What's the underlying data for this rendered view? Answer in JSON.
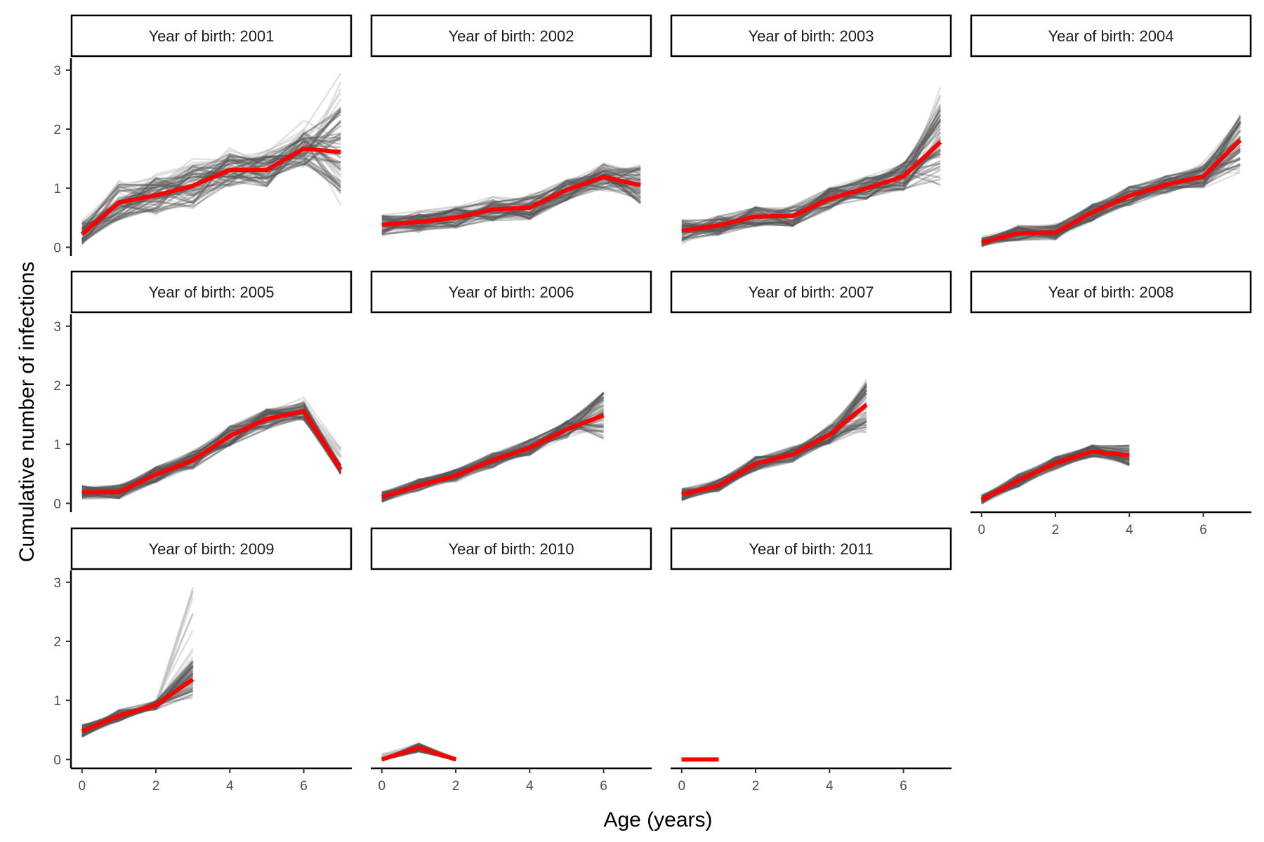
{
  "chart_data": {
    "type": "line",
    "xlabel": "Age (years)",
    "ylabel": "Cumulative number of infections",
    "xlim": [
      -0.3,
      7.3
    ],
    "ylim": [
      -0.15,
      3.2
    ],
    "x_ticks": [
      0,
      2,
      4,
      6
    ],
    "y_ticks": [
      0,
      1,
      2,
      3
    ],
    "facet_prefix": "Year of birth: ",
    "colors": {
      "mean_line": "#ff0000",
      "sample_lines": "#555555",
      "sample_lines_light": "#bdbdbd"
    },
    "facets": [
      {
        "cohort": "2001",
        "mean": [
          [
            0,
            0.22
          ],
          [
            1,
            0.76
          ],
          [
            2,
            0.88
          ],
          [
            3,
            1.04
          ],
          [
            4,
            1.31
          ],
          [
            5,
            1.31
          ],
          [
            6,
            1.67
          ],
          [
            7,
            1.61
          ]
        ],
        "band_low": [
          0.02,
          0.42,
          0.55,
          0.65,
          1.0,
          1.0,
          1.35,
          0.7
        ],
        "band_high": [
          0.62,
          1.15,
          1.3,
          1.5,
          1.7,
          1.75,
          2.15,
          2.95
        ]
      },
      {
        "cohort": "2002",
        "mean": [
          [
            0,
            0.38
          ],
          [
            1,
            0.43
          ],
          [
            2,
            0.5
          ],
          [
            3,
            0.64
          ],
          [
            4,
            0.67
          ],
          [
            5,
            0.97
          ],
          [
            6,
            1.19
          ],
          [
            7,
            1.05
          ]
        ],
        "band_low": [
          0.18,
          0.25,
          0.32,
          0.44,
          0.46,
          0.78,
          0.95,
          0.7
        ],
        "band_high": [
          0.55,
          0.62,
          0.72,
          0.86,
          0.9,
          1.18,
          1.45,
          1.48
        ]
      },
      {
        "cohort": "2003",
        "mean": [
          [
            0,
            0.28
          ],
          [
            1,
            0.37
          ],
          [
            2,
            0.52
          ],
          [
            3,
            0.53
          ],
          [
            4,
            0.82
          ],
          [
            5,
            1.0
          ],
          [
            6,
            1.2
          ],
          [
            7,
            1.78
          ]
        ],
        "band_low": [
          0.05,
          0.2,
          0.35,
          0.35,
          0.62,
          0.8,
          0.95,
          0.95
        ],
        "band_high": [
          0.48,
          0.55,
          0.7,
          0.72,
          1.02,
          1.22,
          1.45,
          2.85
        ]
      },
      {
        "cohort": "2004",
        "mean": [
          [
            0,
            0.08
          ],
          [
            1,
            0.24
          ],
          [
            2,
            0.25
          ],
          [
            3,
            0.59
          ],
          [
            4,
            0.87
          ],
          [
            5,
            1.06
          ],
          [
            6,
            1.2
          ],
          [
            7,
            1.81
          ]
        ],
        "band_low": [
          0.02,
          0.12,
          0.13,
          0.45,
          0.7,
          0.9,
          1.0,
          1.25
        ],
        "band_high": [
          0.18,
          0.38,
          0.4,
          0.75,
          1.05,
          1.25,
          1.45,
          2.3
        ]
      },
      {
        "cohort": "2005",
        "mean": [
          [
            0,
            0.19
          ],
          [
            1,
            0.19
          ],
          [
            2,
            0.49
          ],
          [
            3,
            0.73
          ],
          [
            4,
            1.14
          ],
          [
            5,
            1.43
          ],
          [
            6,
            1.56
          ],
          [
            7,
            0.57
          ]
        ],
        "band_low": [
          0.08,
          0.08,
          0.35,
          0.58,
          0.95,
          1.25,
          1.4,
          0.5
        ],
        "band_high": [
          0.32,
          0.32,
          0.62,
          0.9,
          1.32,
          1.62,
          1.8,
          1.0
        ]
      },
      {
        "cohort": "2006",
        "mean": [
          [
            0,
            0.11
          ],
          [
            1,
            0.3
          ],
          [
            2,
            0.47
          ],
          [
            3,
            0.73
          ],
          [
            4,
            0.94
          ],
          [
            5,
            1.25
          ],
          [
            6,
            1.49
          ]
        ],
        "band_low": [
          0.03,
          0.2,
          0.37,
          0.6,
          0.8,
          1.1,
          1.0
        ],
        "band_high": [
          0.2,
          0.42,
          0.58,
          0.85,
          1.08,
          1.4,
          1.95
        ]
      },
      {
        "cohort": "2007",
        "mean": [
          [
            0,
            0.15
          ],
          [
            1,
            0.3
          ],
          [
            2,
            0.67
          ],
          [
            3,
            0.83
          ],
          [
            4,
            1.16
          ],
          [
            5,
            1.67
          ]
        ],
        "band_low": [
          0.05,
          0.2,
          0.55,
          0.7,
          1.0,
          1.2
        ],
        "band_high": [
          0.25,
          0.42,
          0.8,
          0.98,
          1.35,
          2.1
        ]
      },
      {
        "cohort": "2008",
        "mean": [
          [
            0,
            0.06
          ],
          [
            1,
            0.39
          ],
          [
            2,
            0.68
          ],
          [
            3,
            0.88
          ],
          [
            4,
            0.81
          ]
        ],
        "band_low": [
          0.0,
          0.28,
          0.58,
          0.78,
          0.62
        ],
        "band_high": [
          0.15,
          0.5,
          0.8,
          1.0,
          1.0
        ]
      },
      {
        "cohort": "2009",
        "mean": [
          [
            0,
            0.48
          ],
          [
            1,
            0.74
          ],
          [
            2,
            0.92
          ],
          [
            3,
            1.36
          ]
        ],
        "band_low": [
          0.38,
          0.65,
          0.85,
          1.0
        ],
        "band_high": [
          0.58,
          0.84,
          1.0,
          3.0
        ]
      },
      {
        "cohort": "2010",
        "mean": [
          [
            0,
            0.0
          ],
          [
            1,
            0.2
          ],
          [
            2,
            0.0
          ]
        ],
        "band_low": [
          0.0,
          0.14,
          0.0
        ],
        "band_high": [
          0.1,
          0.28,
          0.03
        ]
      },
      {
        "cohort": "2011",
        "mean": [
          [
            0,
            0.0
          ],
          [
            1,
            0.0
          ]
        ],
        "band_low": [
          0.0,
          0.0
        ],
        "band_high": [
          0.0,
          0.0
        ]
      }
    ]
  }
}
